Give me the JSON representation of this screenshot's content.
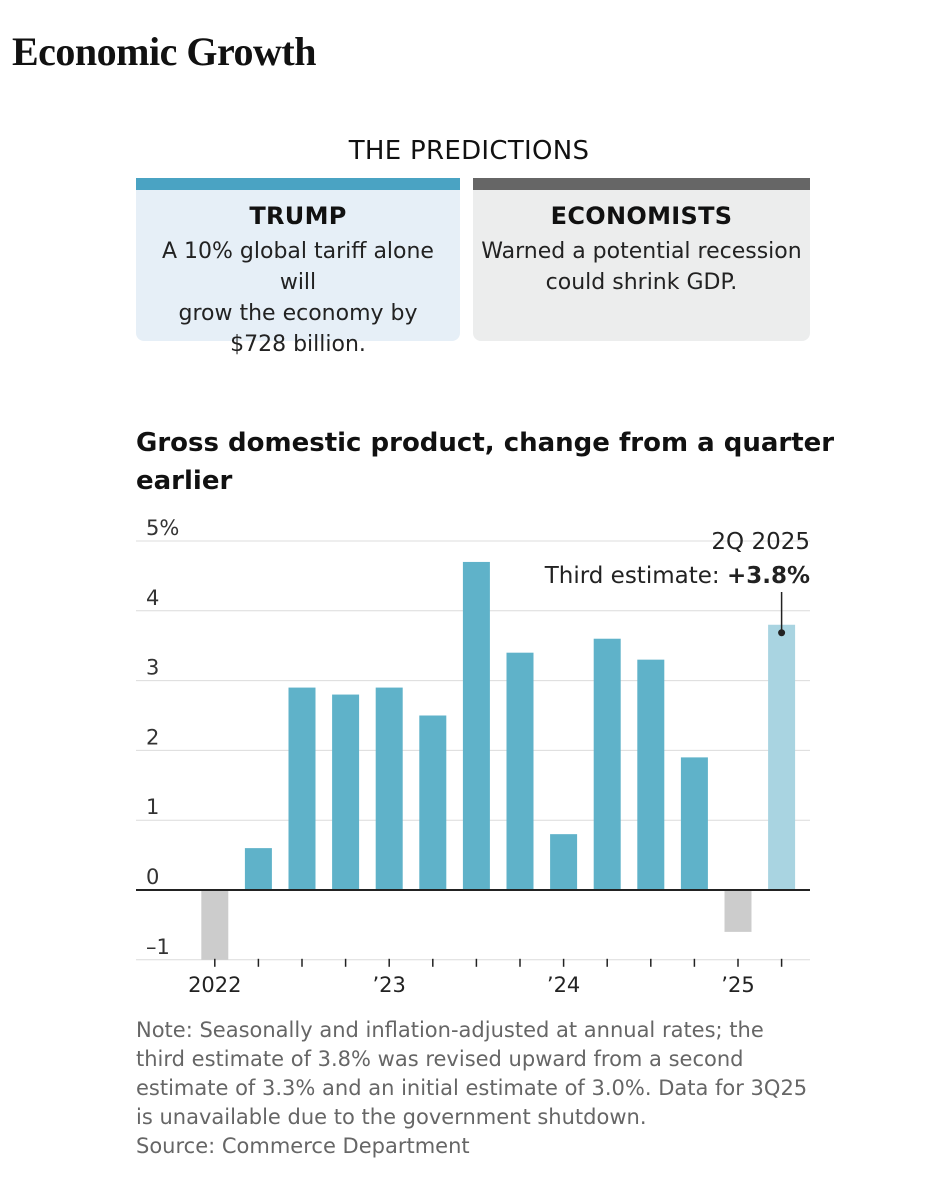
{
  "headline": "Economic Growth",
  "predictions": {
    "title": "THE PREDICTIONS",
    "trump": {
      "label": "TRUMP",
      "lines": [
        "A 10% global tariff alone will",
        "grow the economy by",
        "$728 billion."
      ]
    },
    "economists": {
      "label": "ECONOMISTS",
      "lines": [
        "Warned a potential recession",
        "could shrink GDP."
      ]
    }
  },
  "chart_title_lines": [
    "Gross domestic product, change from a quarter",
    "earlier"
  ],
  "colors": {
    "positive": "#5fb2c9",
    "negative": "#cccccc",
    "highlight": "#a9d4e1",
    "trump_accent": "#4aa3c3",
    "econ_accent": "#666666"
  },
  "chart_data": {
    "type": "bar",
    "ylim": [
      -1,
      5
    ],
    "y_ticks": [
      {
        "value": 5,
        "label": "5%"
      },
      {
        "value": 4,
        "label": "4"
      },
      {
        "value": 3,
        "label": "3"
      },
      {
        "value": 2,
        "label": "2"
      },
      {
        "value": 1,
        "label": "1"
      },
      {
        "value": 0,
        "label": "0"
      },
      {
        "value": -1,
        "label": "–1"
      }
    ],
    "grid": true,
    "values": [
      -1.0,
      0.6,
      2.9,
      2.8,
      2.9,
      2.5,
      4.7,
      3.4,
      0.8,
      3.6,
      3.3,
      1.9,
      -0.6,
      3.8
    ],
    "highlight_index": 13,
    "x_labels": [
      {
        "index": 0,
        "label": "2022"
      },
      {
        "index": 4,
        "label": "’23"
      },
      {
        "index": 8,
        "label": "’24"
      },
      {
        "index": 12,
        "label": "’25"
      }
    ],
    "annotation": {
      "index": 13,
      "line1": "2Q 2025",
      "line2_prefix": "Third estimate: ",
      "line2_value": "+3.8%"
    }
  },
  "note_lines": [
    "Note: Seasonally and inflation-adjusted at annual rates; the",
    "third estimate of 3.8% was revised upward from a second",
    "estimate of 3.3% and an initial estimate of 3.0%. Data for 3Q25",
    "is unavailable due to the government shutdown.",
    "Source: Commerce Department"
  ]
}
